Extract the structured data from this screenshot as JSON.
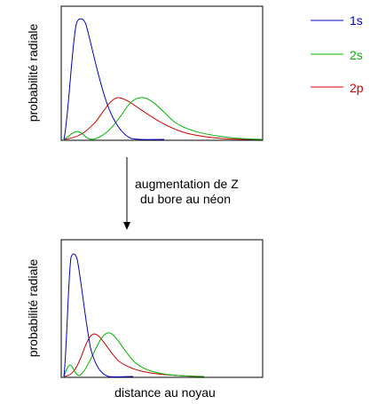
{
  "colors": {
    "1s": "#0000c8",
    "2s": "#00b400",
    "2p": "#d00000",
    "axis": "#000000"
  },
  "legend": [
    {
      "key": "1s",
      "label": "1s"
    },
    {
      "key": "2s",
      "label": "2s"
    },
    {
      "key": "2p",
      "label": "2p"
    }
  ],
  "arrow": {
    "line1": "augmentation de Z",
    "line2": "du bore au néon"
  },
  "top_plot": {
    "ylabel": "probabilité radiale"
  },
  "bottom_plot": {
    "ylabel": "probabilité radiale",
    "xlabel": "distance au noyau"
  }
}
